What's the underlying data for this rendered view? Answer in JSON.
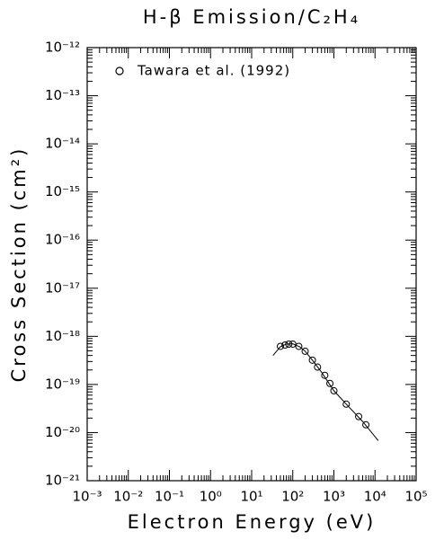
{
  "chart_data": {
    "type": "scatter",
    "title": "H-β Emission/C₂H₄",
    "x_label": "Electron Energy (eV)",
    "y_label": "Cross Section (cm²)",
    "xscale": "log",
    "yscale": "log",
    "xlim": [
      0.001,
      100000
    ],
    "ylim": [
      1e-21,
      1e-12
    ],
    "xticks": [
      {
        "value": 0.001,
        "label": "10⁻³"
      },
      {
        "value": 0.01,
        "label": "10⁻²"
      },
      {
        "value": 0.1,
        "label": "10⁻¹"
      },
      {
        "value": 1,
        "label": "10⁰"
      },
      {
        "value": 10,
        "label": "10¹"
      },
      {
        "value": 100,
        "label": "10²"
      },
      {
        "value": 1000,
        "label": "10³"
      },
      {
        "value": 10000,
        "label": "10⁴"
      },
      {
        "value": 100000,
        "label": "10⁵"
      }
    ],
    "yticks": [
      {
        "value": 1e-21,
        "label": "10⁻²¹"
      },
      {
        "value": 1e-20,
        "label": "10⁻²⁰"
      },
      {
        "value": 1e-19,
        "label": "10⁻¹⁹"
      },
      {
        "value": 1e-18,
        "label": "10⁻¹⁸"
      },
      {
        "value": 1e-17,
        "label": "10⁻¹⁷"
      },
      {
        "value": 1e-16,
        "label": "10⁻¹⁶"
      },
      {
        "value": 1e-15,
        "label": "10⁻¹⁵"
      },
      {
        "value": 1e-14,
        "label": "10⁻¹⁴"
      },
      {
        "value": 1e-13,
        "label": "10⁻¹³"
      },
      {
        "value": 1e-12,
        "label": "10⁻¹²"
      }
    ],
    "legend_position": "upper left",
    "series": [
      {
        "name": "Tawara et al. (1992)",
        "color": "#000000",
        "style": "markers",
        "x": [
          50,
          65,
          80,
          100,
          140,
          200,
          300,
          400,
          600,
          800,
          1000,
          2000,
          4000,
          6000
        ],
        "values": [
          6.2e-19,
          6.6e-19,
          6.9e-19,
          6.9e-19,
          6.2e-19,
          4.9e-19,
          3.2e-19,
          2.3e-19,
          1.55e-19,
          1.05e-19,
          7.4e-20,
          3.9e-20,
          2.15e-20,
          1.45e-20
        ]
      },
      {
        "color": "#000000",
        "style": "line",
        "x": [
          33,
          50,
          70,
          100,
          150,
          200,
          300,
          500,
          1000,
          2000,
          5000,
          12000
        ],
        "values": [
          4e-19,
          6.1e-19,
          6.9e-19,
          7e-19,
          6e-19,
          4.9e-19,
          3.2e-19,
          1.8e-19,
          7.4e-20,
          3.9e-20,
          1.7e-20,
          6.8e-21
        ]
      }
    ]
  }
}
